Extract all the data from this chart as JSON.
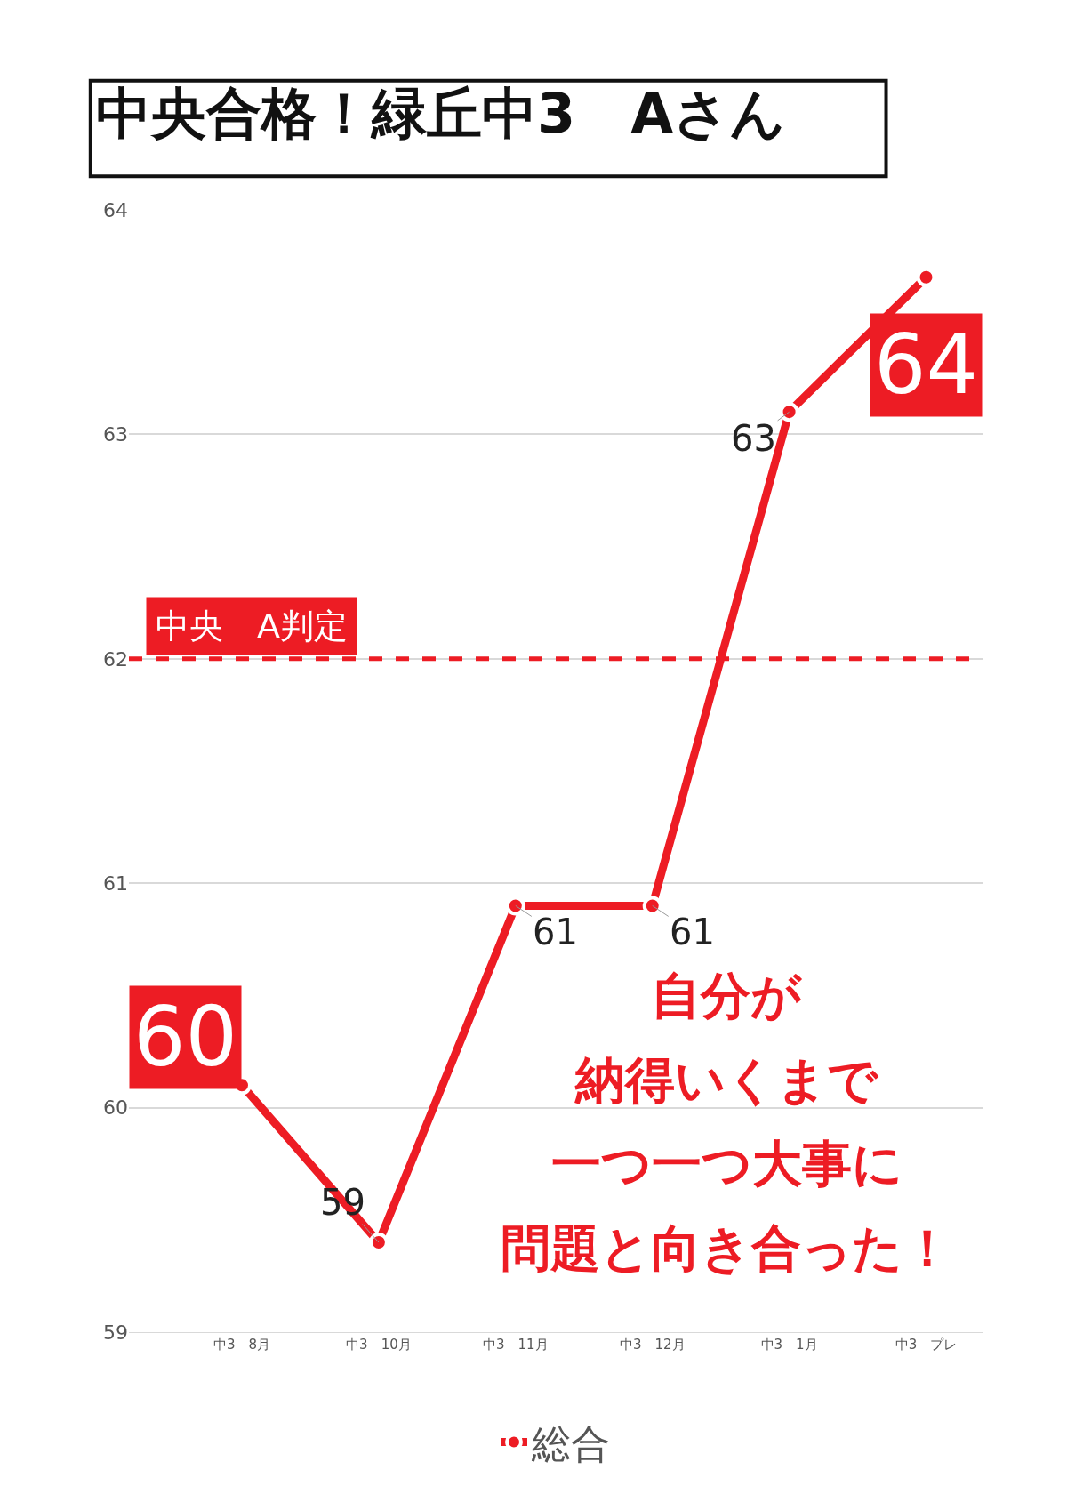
{
  "chart_data": {
    "type": "line",
    "title": "中央合格！緑丘中3　Aさん",
    "categories": [
      "中3　8月",
      "中3　10月",
      "中3　11月",
      "中3　12月",
      "中3　1月",
      "中3　プレ"
    ],
    "series": [
      {
        "name": "総合",
        "color": "#ed1c24",
        "values": [
          60.1,
          59.4,
          60.9,
          60.9,
          63.1,
          63.7
        ],
        "value_labels": [
          "60",
          "59",
          "61",
          "61",
          "63",
          "64"
        ]
      }
    ],
    "ylim": [
      59,
      64
    ],
    "yticks": [
      59,
      60,
      61,
      62,
      63,
      64
    ],
    "grid": "y",
    "legend": "bottom",
    "marker": "circle",
    "line_style": "solid",
    "ref_lines": [
      {
        "axis": "y",
        "value": 62,
        "label": "中央　A判定",
        "color": "#ed1c24",
        "line_style": "dashed"
      }
    ],
    "annotations": [
      "自分が",
      "納得いくまで",
      "一つ一つ大事に",
      "問題と向き合った！"
    ]
  }
}
